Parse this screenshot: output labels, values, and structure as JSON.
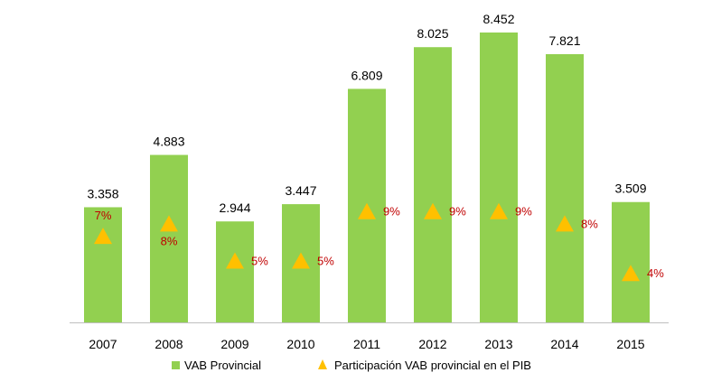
{
  "chart_data": {
    "type": "bar",
    "categories": [
      "2007",
      "2008",
      "2009",
      "2010",
      "2011",
      "2012",
      "2013",
      "2014",
      "2015"
    ],
    "series": [
      {
        "name": "VAB Provincial",
        "type": "bar",
        "values": [
          3358,
          4883,
          2944,
          3447,
          6809,
          8025,
          8452,
          7821,
          3509
        ],
        "labels": [
          "3.358",
          "4.883",
          "2.944",
          "3.447",
          "6.809",
          "8.025",
          "8.452",
          "7.821",
          "3.509"
        ],
        "color": "#92d050"
      },
      {
        "name": "Participación VAB provincial en el PIB",
        "type": "scatter",
        "marker": "triangle",
        "values": [
          7,
          8,
          5,
          5,
          9,
          9,
          9,
          8,
          4
        ],
        "labels": [
          "7%",
          "8%",
          "5%",
          "5%",
          "9%",
          "9%",
          "9%",
          "8%",
          "4%"
        ],
        "color": "#ffc000",
        "label_color": "#c00000"
      }
    ],
    "ylim_bars": [
      0,
      8452
    ],
    "ylim_pct": [
      0,
      9
    ],
    "grid": false,
    "legend_position": "bottom",
    "axis_color": "#bfbfbf"
  }
}
